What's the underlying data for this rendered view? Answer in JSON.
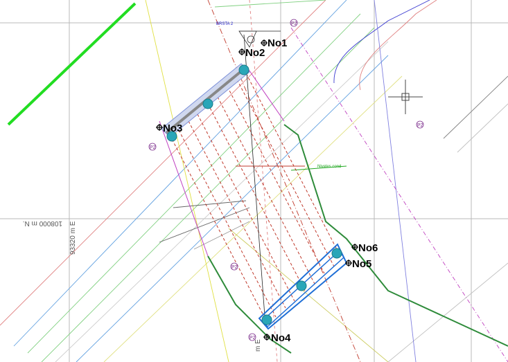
{
  "drawing": {
    "nodes": [
      {
        "id": "no1",
        "label": "No1"
      },
      {
        "id": "no2",
        "label": "No2"
      },
      {
        "id": "no3",
        "label": "No3"
      },
      {
        "id": "no4",
        "label": "No4"
      },
      {
        "id": "no5",
        "label": "No5"
      },
      {
        "id": "no6",
        "label": "No6"
      }
    ],
    "coordinate_labels": {
      "north": "108000 m N.",
      "east_left": "93320 m E",
      "east_bottom": "m E"
    },
    "annotation_small_top": "BRSTA 2",
    "annotation_level": "Niveles  cond",
    "circle_markers": [
      "P2",
      "P2",
      "P2",
      "P2",
      "P2"
    ],
    "colors": {
      "highlight_green": "#22dd22",
      "border_green": "#2e8b3a",
      "blue_frame": "#1f6fd6",
      "pile_cyan": "#2aa6b8",
      "dash_red": "#c0392b",
      "magenta": "#c040c0",
      "grid_gray": "#b0b0b0"
    }
  }
}
